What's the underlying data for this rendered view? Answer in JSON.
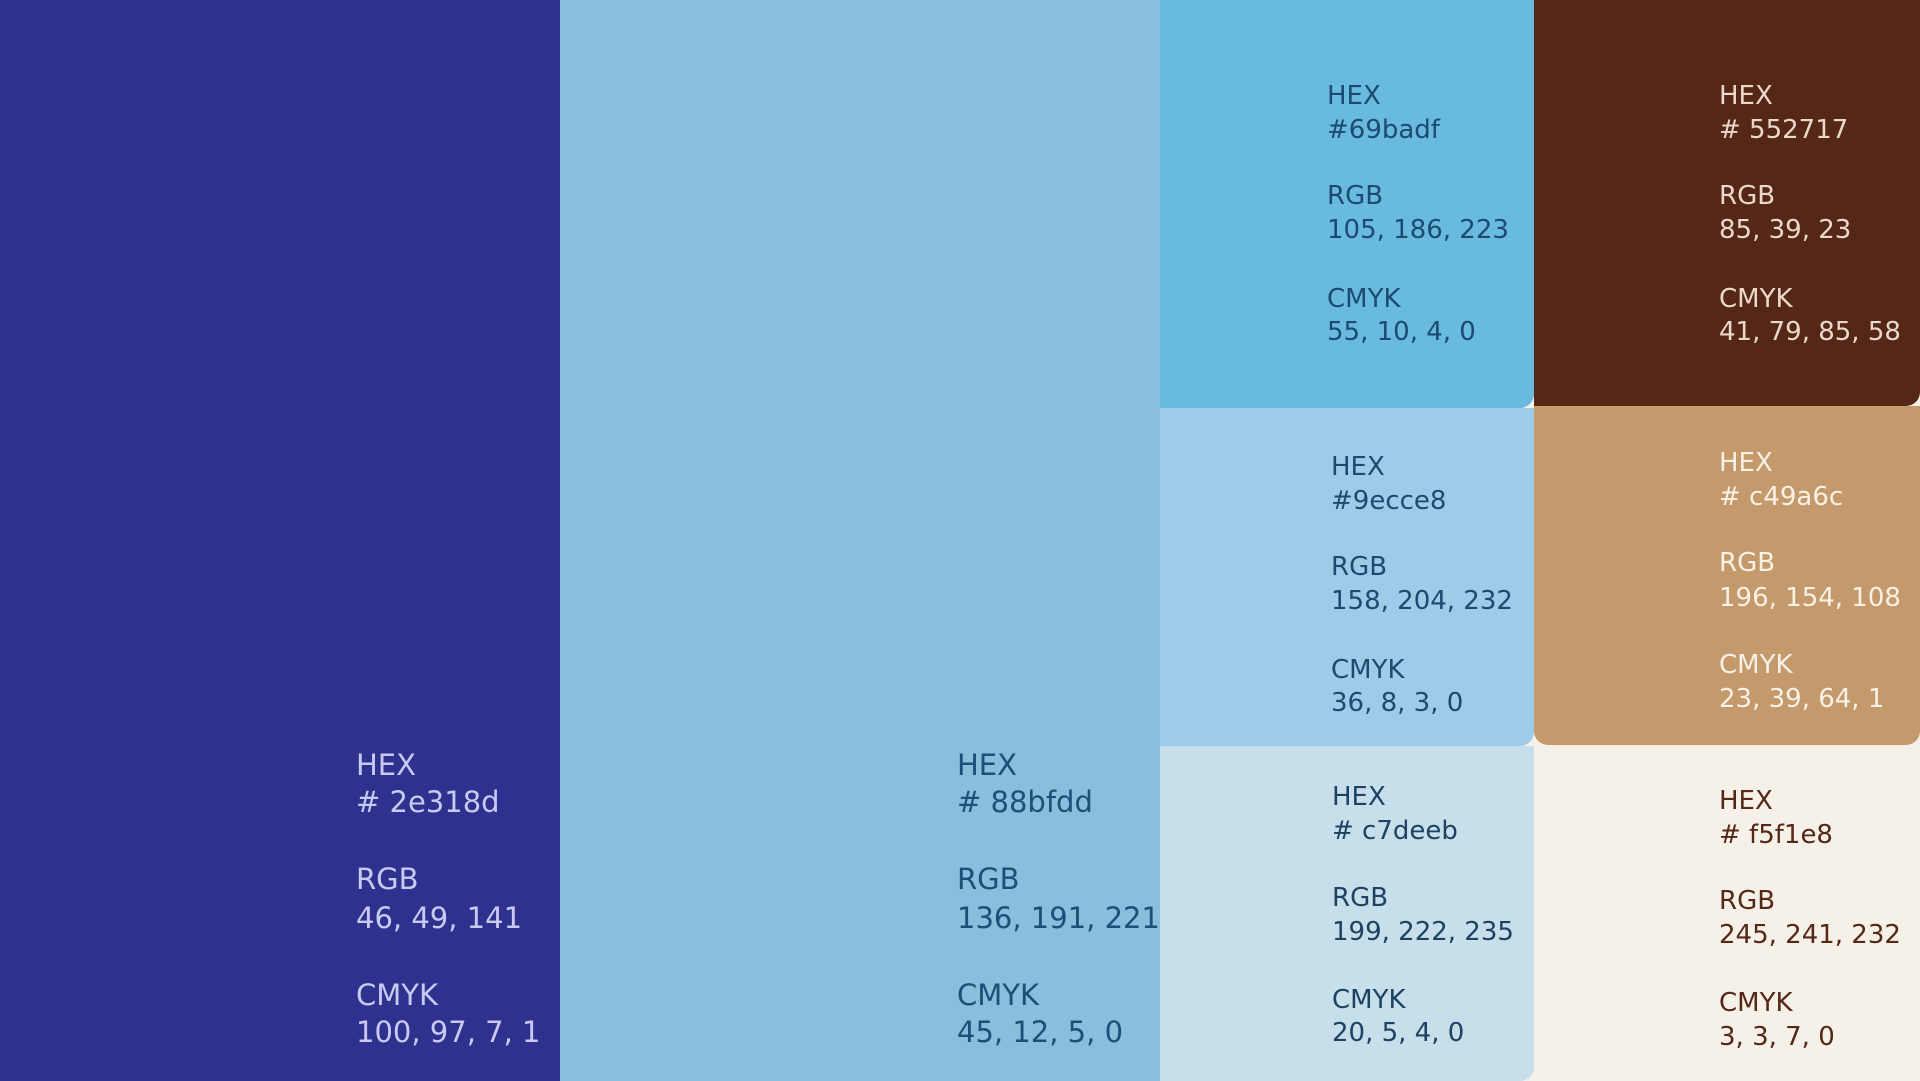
{
  "swatches": [
    {
      "hex_label": "HEX",
      "hex": "# 2e318d",
      "rgb_label": "RGB",
      "rgb": "46, 49, 141",
      "cmyk_label": "CMYK",
      "cmyk": "100, 97, 7, 1"
    },
    {
      "hex_label": "HEX",
      "hex": "# 88bfdd",
      "rgb_label": "RGB",
      "rgb": "136, 191, 221",
      "cmyk_label": "CMYK",
      "cmyk": "45, 12, 5, 0"
    },
    {
      "hex_label": "HEX",
      "hex": "#69badf",
      "rgb_label": "RGB",
      "rgb": "105, 186, 223",
      "cmyk_label": "CMYK",
      "cmyk": "55, 10, 4, 0"
    },
    {
      "hex_label": "HEX",
      "hex": "#9ecce8",
      "rgb_label": "RGB",
      "rgb": "158, 204, 232",
      "cmyk_label": "CMYK",
      "cmyk": "36, 8, 3, 0"
    },
    {
      "hex_label": "HEX",
      "hex": "# c7deeb",
      "rgb_label": "RGB",
      "rgb": "199, 222, 235",
      "cmyk_label": "CMYK",
      "cmyk": "20, 5, 4, 0"
    },
    {
      "hex_label": "HEX",
      "hex": "# 552717",
      "rgb_label": "RGB",
      "rgb": "85, 39, 23",
      "cmyk_label": "CMYK",
      "cmyk": "41, 79, 85, 58"
    },
    {
      "hex_label": "HEX",
      "hex": "# c49a6c",
      "rgb_label": "RGB",
      "rgb": "196, 154, 108",
      "cmyk_label": "CMYK",
      "cmyk": "23, 39, 64, 1"
    },
    {
      "hex_label": "HEX",
      "hex": "# f5f1e8",
      "rgb_label": "RGB",
      "rgb": "245, 241, 232",
      "cmyk_label": "CMYK",
      "cmyk": "3, 3, 7, 0"
    }
  ]
}
